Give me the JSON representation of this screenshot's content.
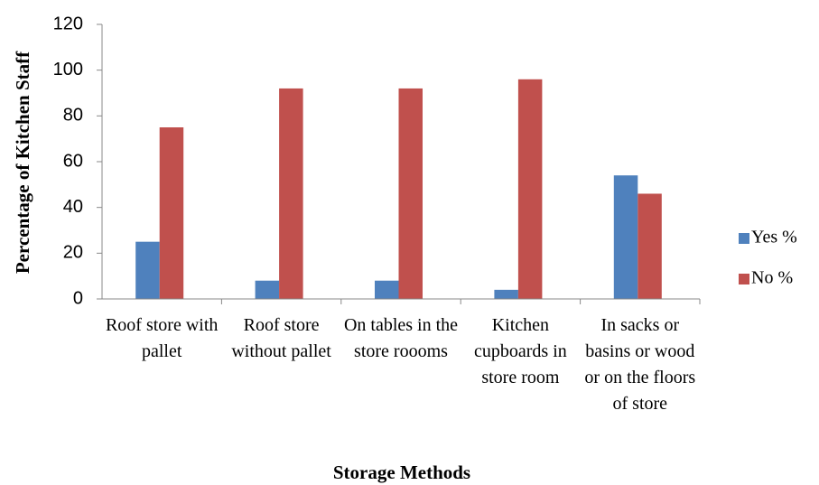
{
  "chart_data": {
    "type": "bar",
    "y_label": "Percentage of Kitchen Staff",
    "x_label": "Storage Methods",
    "categories": [
      "Roof store with pallet",
      "Roof store without pallet",
      "On tables in the store roooms",
      "Kitchen cupboards in store room",
      "In sacks or basins or wood or on the floors of store"
    ],
    "series": [
      {
        "name": "Yes %",
        "color": "#4f81bd",
        "values": [
          25,
          8,
          8,
          4,
          54
        ]
      },
      {
        "name": "No %",
        "color": "#c0504d",
        "values": [
          75,
          92,
          92,
          96,
          46
        ]
      }
    ],
    "ylim": [
      0,
      120
    ],
    "yticks": [
      0,
      20,
      40,
      60,
      80,
      100,
      120
    ],
    "grid": false,
    "legend": "right"
  }
}
